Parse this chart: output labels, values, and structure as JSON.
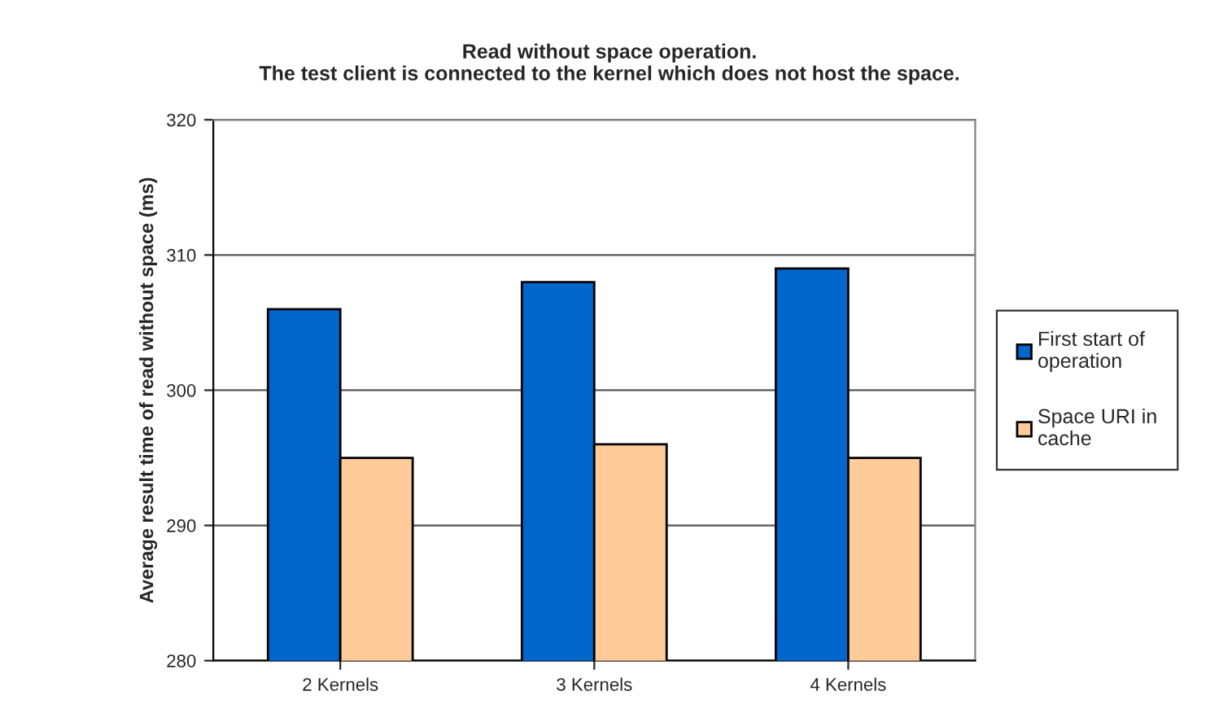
{
  "chart_data": {
    "type": "bar",
    "title": "Read without space operation.\nThe test client is connected to the kernel which does not host the space.",
    "ylabel": "Average result time of read without space (ms)",
    "categories": [
      "2 Kernels",
      "3 Kernels",
      "4 Kernels"
    ],
    "series": [
      {
        "name": "First start of operation",
        "color": "#0066cc",
        "values": [
          306,
          308,
          309
        ]
      },
      {
        "name": "Space URI in cache",
        "color": "#ffcc99",
        "values": [
          295,
          296,
          295
        ]
      }
    ],
    "ylim": [
      280,
      320
    ],
    "yticks": [
      280,
      290,
      300,
      310,
      320
    ],
    "grid": "y",
    "legend": "right"
  }
}
